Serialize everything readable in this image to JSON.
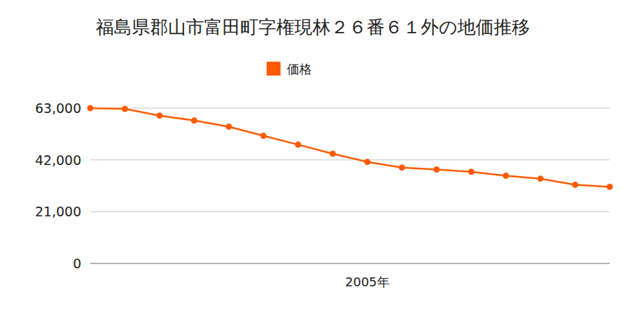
{
  "chart_data": {
    "type": "line",
    "title": "福島県郡山市富田町字権現林２６番６１外の地価推移",
    "categories": [
      null,
      null,
      null,
      null,
      null,
      null,
      null,
      null,
      "2005年",
      null,
      null,
      null,
      null,
      null,
      null,
      null
    ],
    "series": [
      {
        "name": "価格",
        "color": "#ff5a00",
        "marker": "circle",
        "values": [
          63000,
          62700,
          60000,
          58000,
          55500,
          51800,
          48200,
          44500,
          41200,
          38900,
          38100,
          37200,
          35600,
          34400,
          31900,
          31100
        ]
      }
    ],
    "ylim": [
      0,
      63000
    ],
    "yticks": [
      0,
      {
        "value": 21000,
        "label": "21,000"
      },
      {
        "value": 42000,
        "label": "42,000"
      },
      {
        "value": 63000,
        "label": "63,000"
      }
    ],
    "grid": true,
    "legend": "top"
  }
}
